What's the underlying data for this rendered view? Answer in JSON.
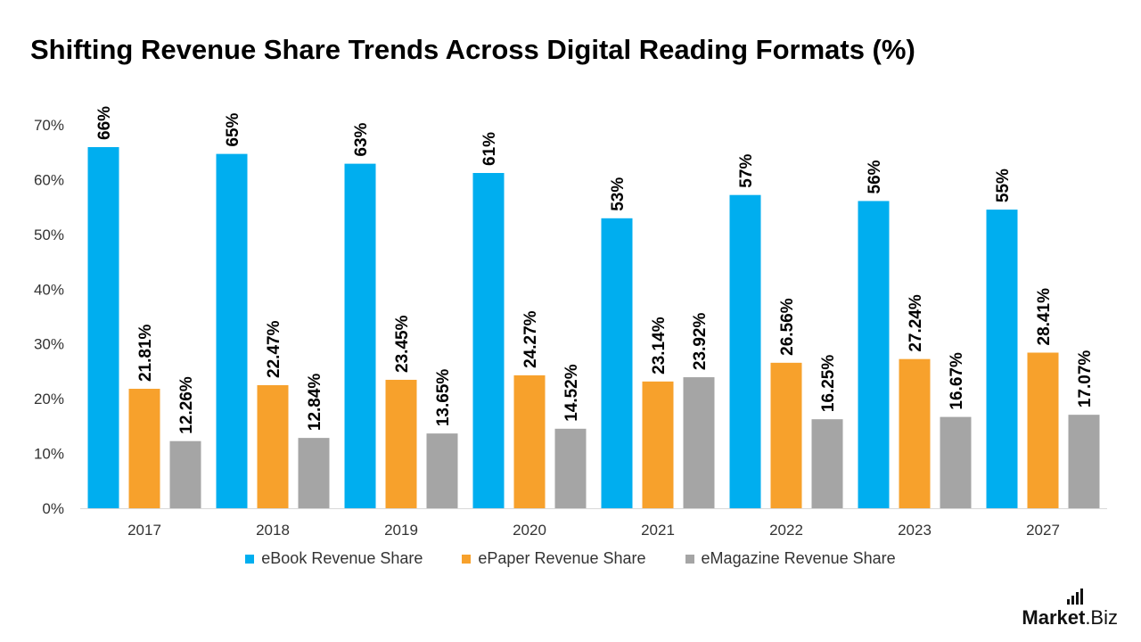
{
  "chart_data": {
    "type": "bar",
    "title": "Shifting Revenue Share Trends Across Digital Reading Formats (%)",
    "categories": [
      "2017",
      "2018",
      "2019",
      "2020",
      "2021",
      "2022",
      "2023",
      "2027"
    ],
    "series": [
      {
        "name": "eBook Revenue Share",
        "color": "#00aeef",
        "values": [
          66,
          65,
          63,
          61,
          53,
          57,
          56,
          55
        ],
        "plotted": [
          65.93,
          64.69,
          62.9,
          61.21,
          52.94,
          57.19,
          56.09,
          54.52
        ],
        "labels": [
          "66%",
          "65%",
          "63%",
          "61%",
          "53%",
          "57%",
          "56%",
          "55%"
        ]
      },
      {
        "name": "ePaper Revenue Share",
        "color": "#f7a12c",
        "values": [
          21.81,
          22.47,
          23.45,
          24.27,
          23.14,
          26.56,
          27.24,
          28.41
        ],
        "labels": [
          "21.81%",
          "22.47%",
          "23.45%",
          "24.27%",
          "23.14%",
          "26.56%",
          "27.24%",
          "28.41%"
        ]
      },
      {
        "name": "eMagazine Revenue Share",
        "color": "#a5a5a5",
        "values": [
          12.26,
          12.84,
          13.65,
          14.52,
          23.92,
          16.25,
          16.67,
          17.07
        ],
        "labels": [
          "12.26%",
          "12.84%",
          "13.65%",
          "14.52%",
          "23.92%",
          "16.25%",
          "16.67%",
          "17.07%"
        ]
      }
    ],
    "ylim": [
      0,
      70
    ],
    "yticks": [
      "0%",
      "10%",
      "20%",
      "30%",
      "40%",
      "50%",
      "60%",
      "70%"
    ],
    "grid": false,
    "legend_position": "bottom"
  },
  "brand": {
    "bold": "Market",
    "rest": ".Biz"
  }
}
